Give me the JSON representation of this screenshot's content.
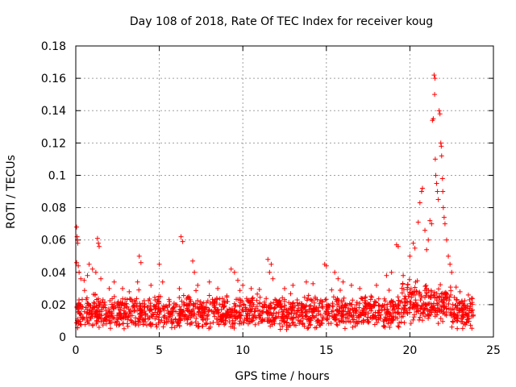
{
  "chart_data": {
    "type": "scatter",
    "title": "Day 108 of 2018, Rate Of TEC Index for receiver koug",
    "xlabel": "GPS time / hours",
    "ylabel": "ROTI / TECUs",
    "xlim": [
      0,
      25
    ],
    "ylim": [
      0,
      0.18
    ],
    "xticks": [
      0,
      5,
      10,
      15,
      20,
      25
    ],
    "yticks": [
      0,
      0.02,
      0.04,
      0.06,
      0.08,
      0.1,
      0.12,
      0.14,
      0.16,
      0.18
    ],
    "xtick_labels": [
      "0",
      "5",
      "10",
      "15",
      "20",
      "25"
    ],
    "ytick_labels": [
      "0",
      "0.02",
      "0.04",
      "0.06",
      "0.08",
      "0.1",
      "0.12",
      "0.14",
      "0.16",
      "0.18"
    ],
    "grid": true,
    "marker": "+",
    "color": "#ff0000",
    "series": [
      {
        "points": [
          [
            0.05,
            0.068
          ],
          [
            0.08,
            0.062
          ],
          [
            0.1,
            0.06
          ],
          [
            0.12,
            0.058
          ],
          [
            0.05,
            0.046
          ],
          [
            0.15,
            0.044
          ],
          [
            0.2,
            0.04
          ],
          [
            0.3,
            0.036
          ],
          [
            0.5,
            0.035
          ],
          [
            0.7,
            0.038
          ],
          [
            0.8,
            0.045
          ],
          [
            1.0,
            0.042
          ],
          [
            1.3,
            0.061
          ],
          [
            1.35,
            0.058
          ],
          [
            1.4,
            0.056
          ],
          [
            1.2,
            0.04
          ],
          [
            1.5,
            0.036
          ],
          [
            2.0,
            0.03
          ],
          [
            2.3,
            0.034
          ],
          [
            2.8,
            0.03
          ],
          [
            3.2,
            0.028
          ],
          [
            3.8,
            0.05
          ],
          [
            3.9,
            0.046
          ],
          [
            3.7,
            0.034
          ],
          [
            4.5,
            0.032
          ],
          [
            5.0,
            0.045
          ],
          [
            5.2,
            0.034
          ],
          [
            6.3,
            0.062
          ],
          [
            6.4,
            0.059
          ],
          [
            6.2,
            0.03
          ],
          [
            7.0,
            0.047
          ],
          [
            7.1,
            0.04
          ],
          [
            7.3,
            0.032
          ],
          [
            8.0,
            0.034
          ],
          [
            8.5,
            0.03
          ],
          [
            9.3,
            0.042
          ],
          [
            9.5,
            0.04
          ],
          [
            9.7,
            0.035
          ],
          [
            10.0,
            0.032
          ],
          [
            10.5,
            0.03
          ],
          [
            11.5,
            0.048
          ],
          [
            11.7,
            0.045
          ],
          [
            11.6,
            0.04
          ],
          [
            11.8,
            0.036
          ],
          [
            12.5,
            0.03
          ],
          [
            13.0,
            0.032
          ],
          [
            13.8,
            0.034
          ],
          [
            14.2,
            0.033
          ],
          [
            14.9,
            0.045
          ],
          [
            15.0,
            0.044
          ],
          [
            15.5,
            0.04
          ],
          [
            15.7,
            0.036
          ],
          [
            16.0,
            0.034
          ],
          [
            16.5,
            0.032
          ],
          [
            17.0,
            0.03
          ],
          [
            18.0,
            0.032
          ],
          [
            18.6,
            0.038
          ],
          [
            18.9,
            0.04
          ],
          [
            19.2,
            0.057
          ],
          [
            19.3,
            0.056
          ],
          [
            19.6,
            0.038
          ],
          [
            20.0,
            0.05
          ],
          [
            20.2,
            0.058
          ],
          [
            20.3,
            0.055
          ],
          [
            20.5,
            0.071
          ],
          [
            20.6,
            0.083
          ],
          [
            20.7,
            0.09
          ],
          [
            20.75,
            0.092
          ],
          [
            20.9,
            0.066
          ],
          [
            21.0,
            0.054
          ],
          [
            21.1,
            0.06
          ],
          [
            21.2,
            0.072
          ],
          [
            21.3,
            0.07
          ],
          [
            21.35,
            0.134
          ],
          [
            21.4,
            0.135
          ],
          [
            21.45,
            0.162
          ],
          [
            21.5,
            0.16
          ],
          [
            21.48,
            0.15
          ],
          [
            21.52,
            0.11
          ],
          [
            21.55,
            0.1
          ],
          [
            21.6,
            0.095
          ],
          [
            21.65,
            0.09
          ],
          [
            21.7,
            0.085
          ],
          [
            21.75,
            0.14
          ],
          [
            21.8,
            0.138
          ],
          [
            21.85,
            0.12
          ],
          [
            21.88,
            0.118
          ],
          [
            21.9,
            0.112
          ],
          [
            21.95,
            0.098
          ],
          [
            21.97,
            0.09
          ],
          [
            22.0,
            0.08
          ],
          [
            22.05,
            0.074
          ],
          [
            22.1,
            0.07
          ],
          [
            22.2,
            0.06
          ],
          [
            22.3,
            0.05
          ],
          [
            22.4,
            0.045
          ],
          [
            22.5,
            0.04
          ],
          [
            23.0,
            0.028
          ],
          [
            23.5,
            0.026
          ],
          [
            23.7,
            0.024
          ]
        ],
        "band": {
          "x_range": [
            0,
            23.8
          ],
          "y_typical": [
            0.004,
            0.026
          ]
        }
      }
    ]
  }
}
